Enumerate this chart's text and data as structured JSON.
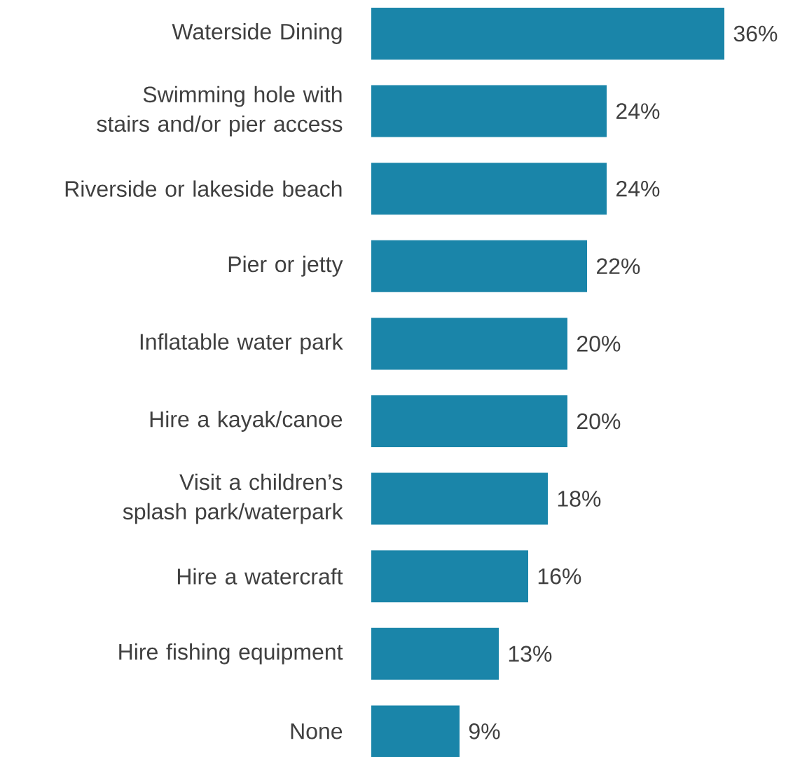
{
  "chart_data": {
    "type": "bar",
    "orientation": "horizontal",
    "categories": [
      "Waterside Dining",
      "Swimming hole with stairs and/or pier access",
      "Riverside or lakeside beach",
      "Pier or jetty",
      "Inflatable water park",
      "Hire a kayak/canoe",
      "Visit a children’s splash park/waterpark",
      "Hire a watercraft",
      "Hire fishing equipment",
      "None"
    ],
    "values": [
      36,
      24,
      24,
      22,
      20,
      20,
      18,
      16,
      13,
      9
    ],
    "value_labels": [
      "36%",
      "24%",
      "24%",
      "22%",
      "20%",
      "20%",
      "18%",
      "16%",
      "13%",
      "9%"
    ],
    "color": "#1a85a9"
  }
}
